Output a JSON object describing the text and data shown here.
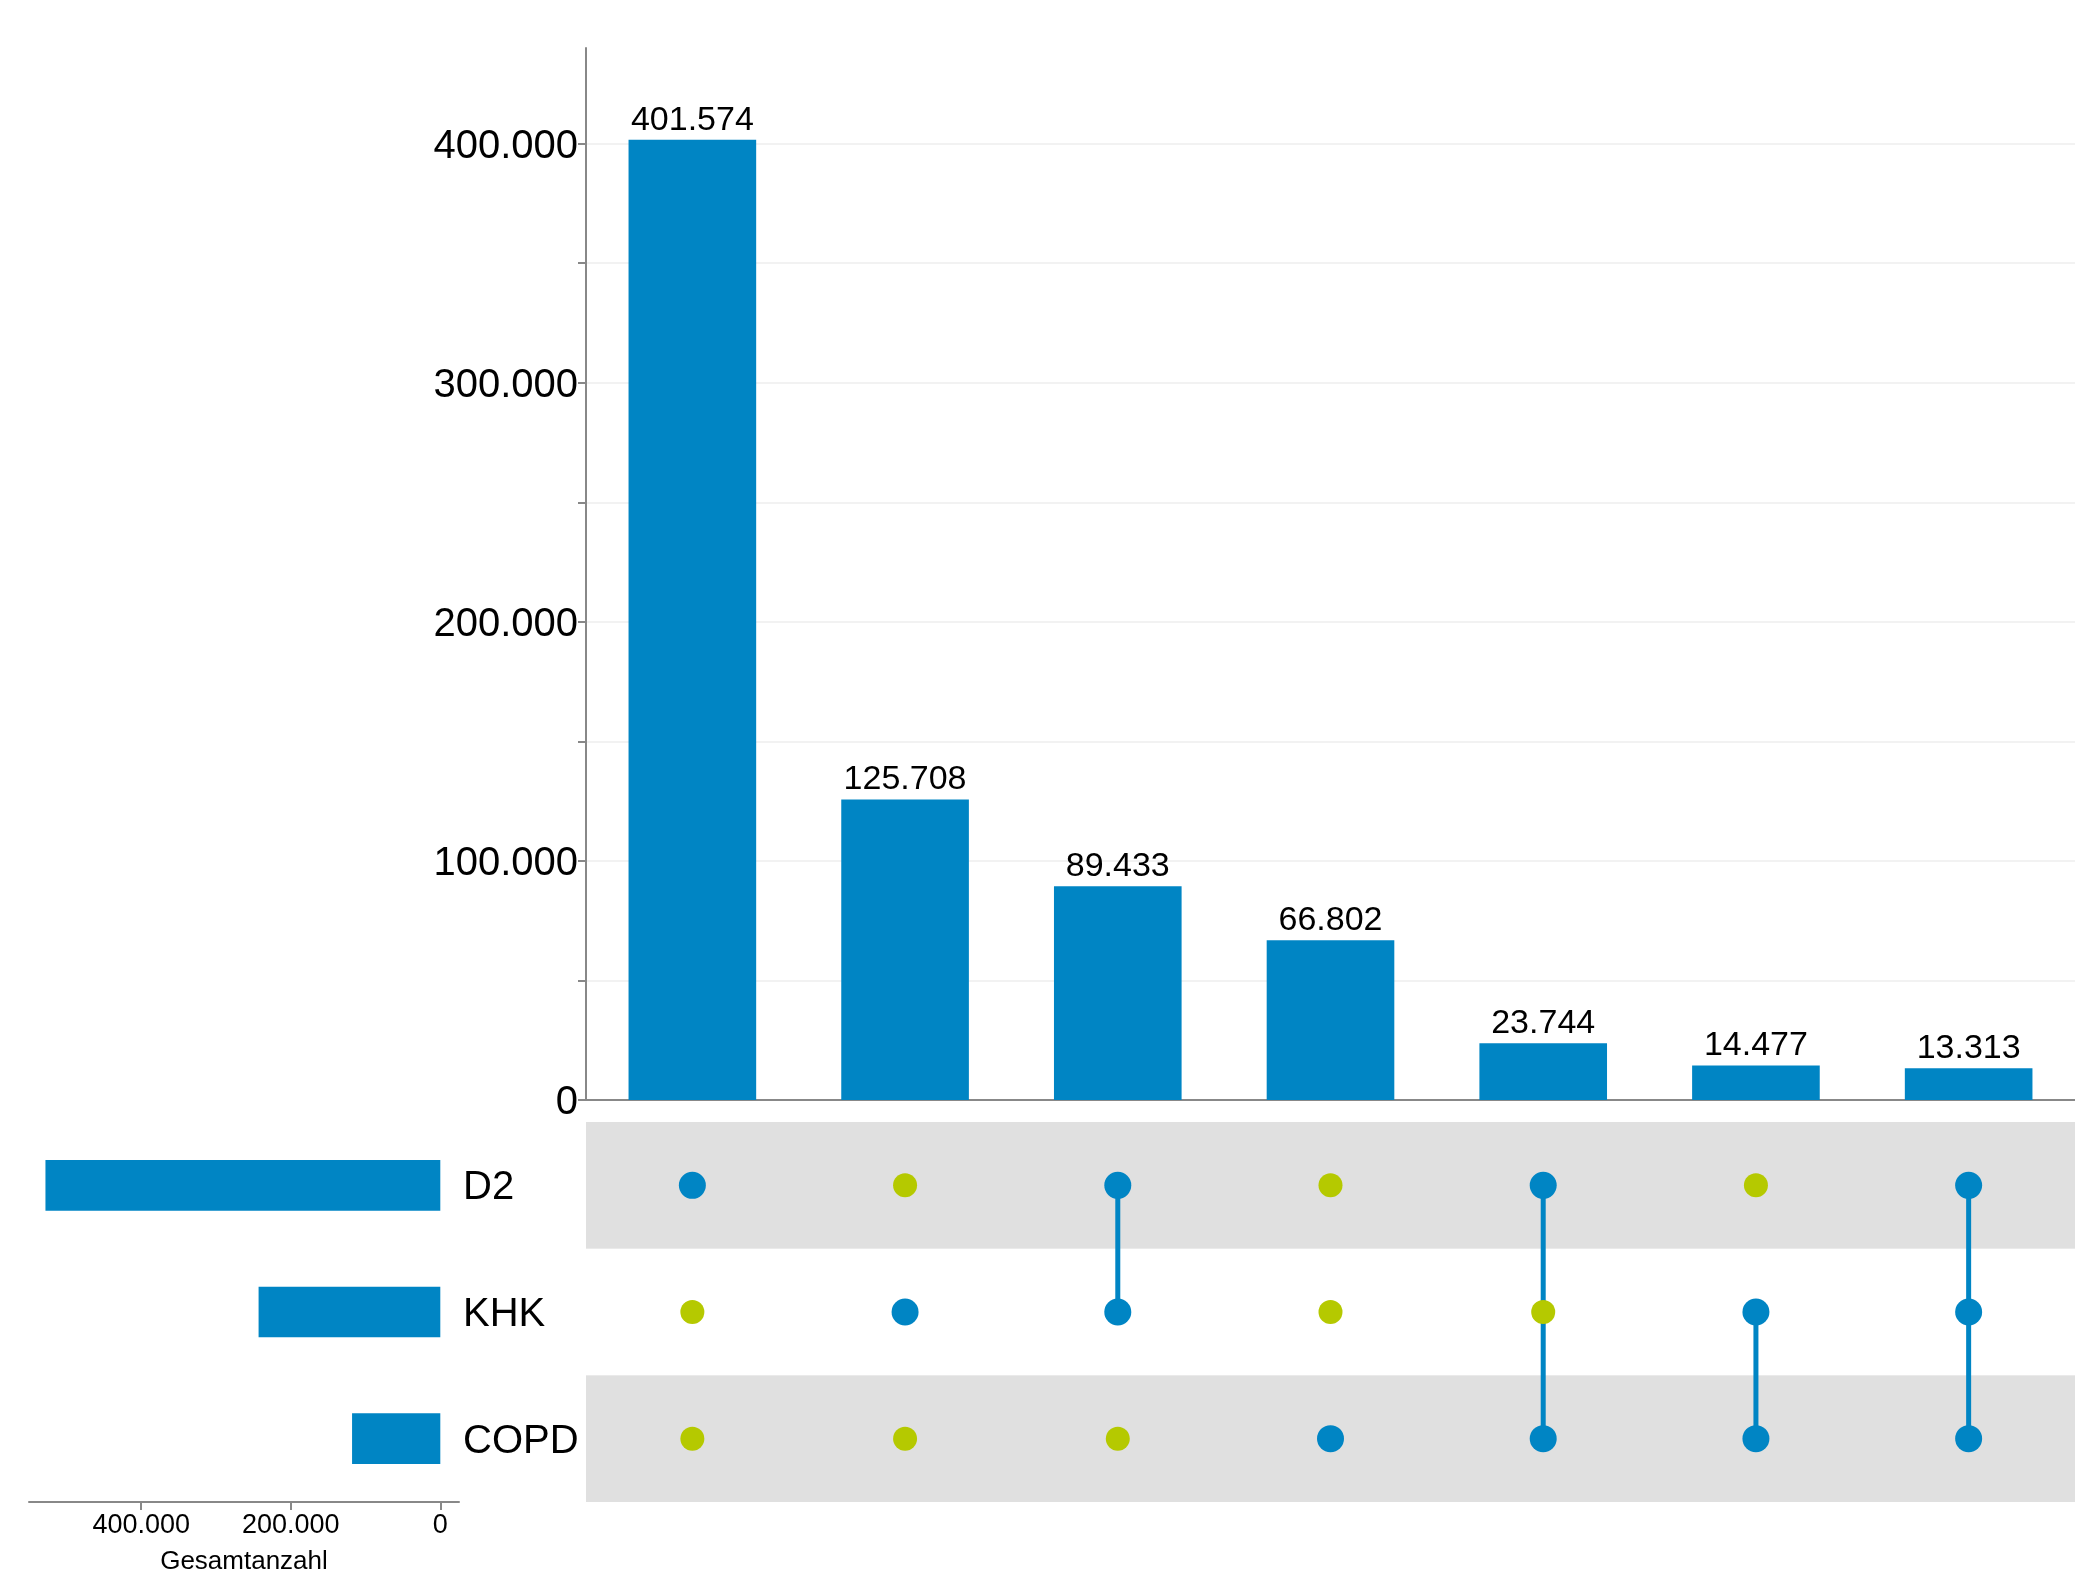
{
  "chart_data": [
    {
      "type": "bar",
      "categories": [
        null,
        null,
        null,
        null,
        null,
        null,
        null
      ],
      "values": [
        401574,
        125708,
        89433,
        66802,
        23744,
        14477,
        13313
      ],
      "color": "#0085c4",
      "value_labels": [
        "401.574",
        "125.708",
        "89.433",
        "66.802",
        "23.744",
        "14.477",
        "13.313"
      ],
      "ylim": [
        0,
        440000
      ],
      "yticks": [
        {
          "value": 0,
          "label": "0"
        },
        {
          "value": 50000,
          "label": null
        },
        {
          "value": 100000,
          "label": "100.000"
        },
        {
          "value": 150000,
          "label": null
        },
        {
          "value": 200000,
          "label": "200.000"
        },
        {
          "value": 250000,
          "label": null
        },
        {
          "value": 300000,
          "label": "300.000"
        },
        {
          "value": 350000,
          "label": null
        },
        {
          "value": 400000,
          "label": "400.000"
        }
      ],
      "grid": "y"
    },
    {
      "type": "bar",
      "orientation": "horizontal",
      "categories": [
        "D2",
        "KHK",
        "COPD"
      ],
      "values": [
        528000,
        243000,
        118000
      ],
      "color": "#0085c4",
      "xlim": [
        550000,
        -25000
      ],
      "xticks": [
        {
          "value": 400000,
          "label": "400.000"
        },
        {
          "value": 200000,
          "label": "200.000"
        },
        {
          "value": 0,
          "label": "0"
        }
      ],
      "xlabel": "Gesamtanzahl"
    }
  ]
}
